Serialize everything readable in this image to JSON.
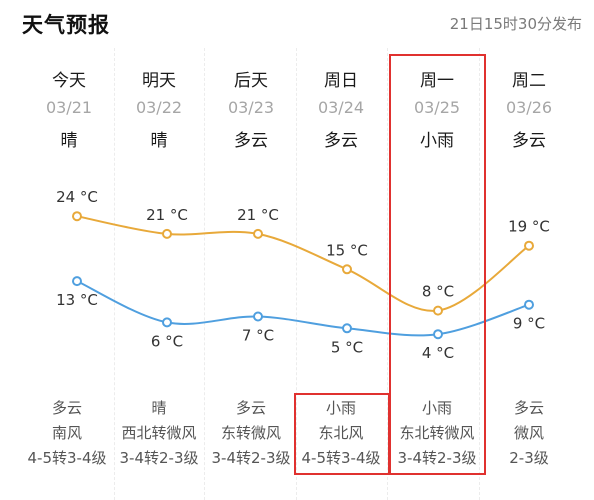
{
  "header": {
    "title": "天气预报",
    "publish_time": "21日15时30分发布"
  },
  "days": [
    {
      "name": "今天",
      "date": "03/21",
      "weather": "晴",
      "night_weather": "多云",
      "wind_dir": "南风",
      "wind_level": "4-5转3-4级"
    },
    {
      "name": "明天",
      "date": "03/22",
      "weather": "晴",
      "night_weather": "晴",
      "wind_dir": "西北转微风",
      "wind_level": "3-4转2-3级"
    },
    {
      "name": "后天",
      "date": "03/23",
      "weather": "多云",
      "night_weather": "多云",
      "wind_dir": "东转微风",
      "wind_level": "3-4转2-3级"
    },
    {
      "name": "周日",
      "date": "03/24",
      "weather": "多云",
      "night_weather": "小雨",
      "wind_dir": "东北风",
      "wind_level": "4-5转3-4级"
    },
    {
      "name": "周一",
      "date": "03/25",
      "weather": "小雨",
      "night_weather": "小雨",
      "wind_dir": "东北转微风",
      "wind_level": "3-4转2-3级"
    },
    {
      "name": "周二",
      "date": "03/26",
      "weather": "多云",
      "night_weather": "多云",
      "wind_dir": "微风",
      "wind_level": "2-3级"
    }
  ],
  "chart_data": {
    "type": "line",
    "categories": [
      "今天",
      "明天",
      "后天",
      "周日",
      "周一",
      "周二"
    ],
    "series": [
      {
        "values": [
          24,
          21,
          21,
          15,
          8,
          19
        ],
        "color": "#e8a93a"
      },
      {
        "values": [
          13,
          6,
          7,
          5,
          4,
          9
        ],
        "color": "#4f9fdf"
      }
    ],
    "labels_high": [
      "24 °C",
      "21 °C",
      "21 °C",
      "15 °C",
      "8 °C",
      "19 °C"
    ],
    "labels_low": [
      "13 °C",
      "6 °C",
      "7 °C",
      "5 °C",
      "4 °C",
      "9 °C"
    ],
    "unit": "°C"
  },
  "colors": {
    "highlight_box": "#e0312f"
  }
}
